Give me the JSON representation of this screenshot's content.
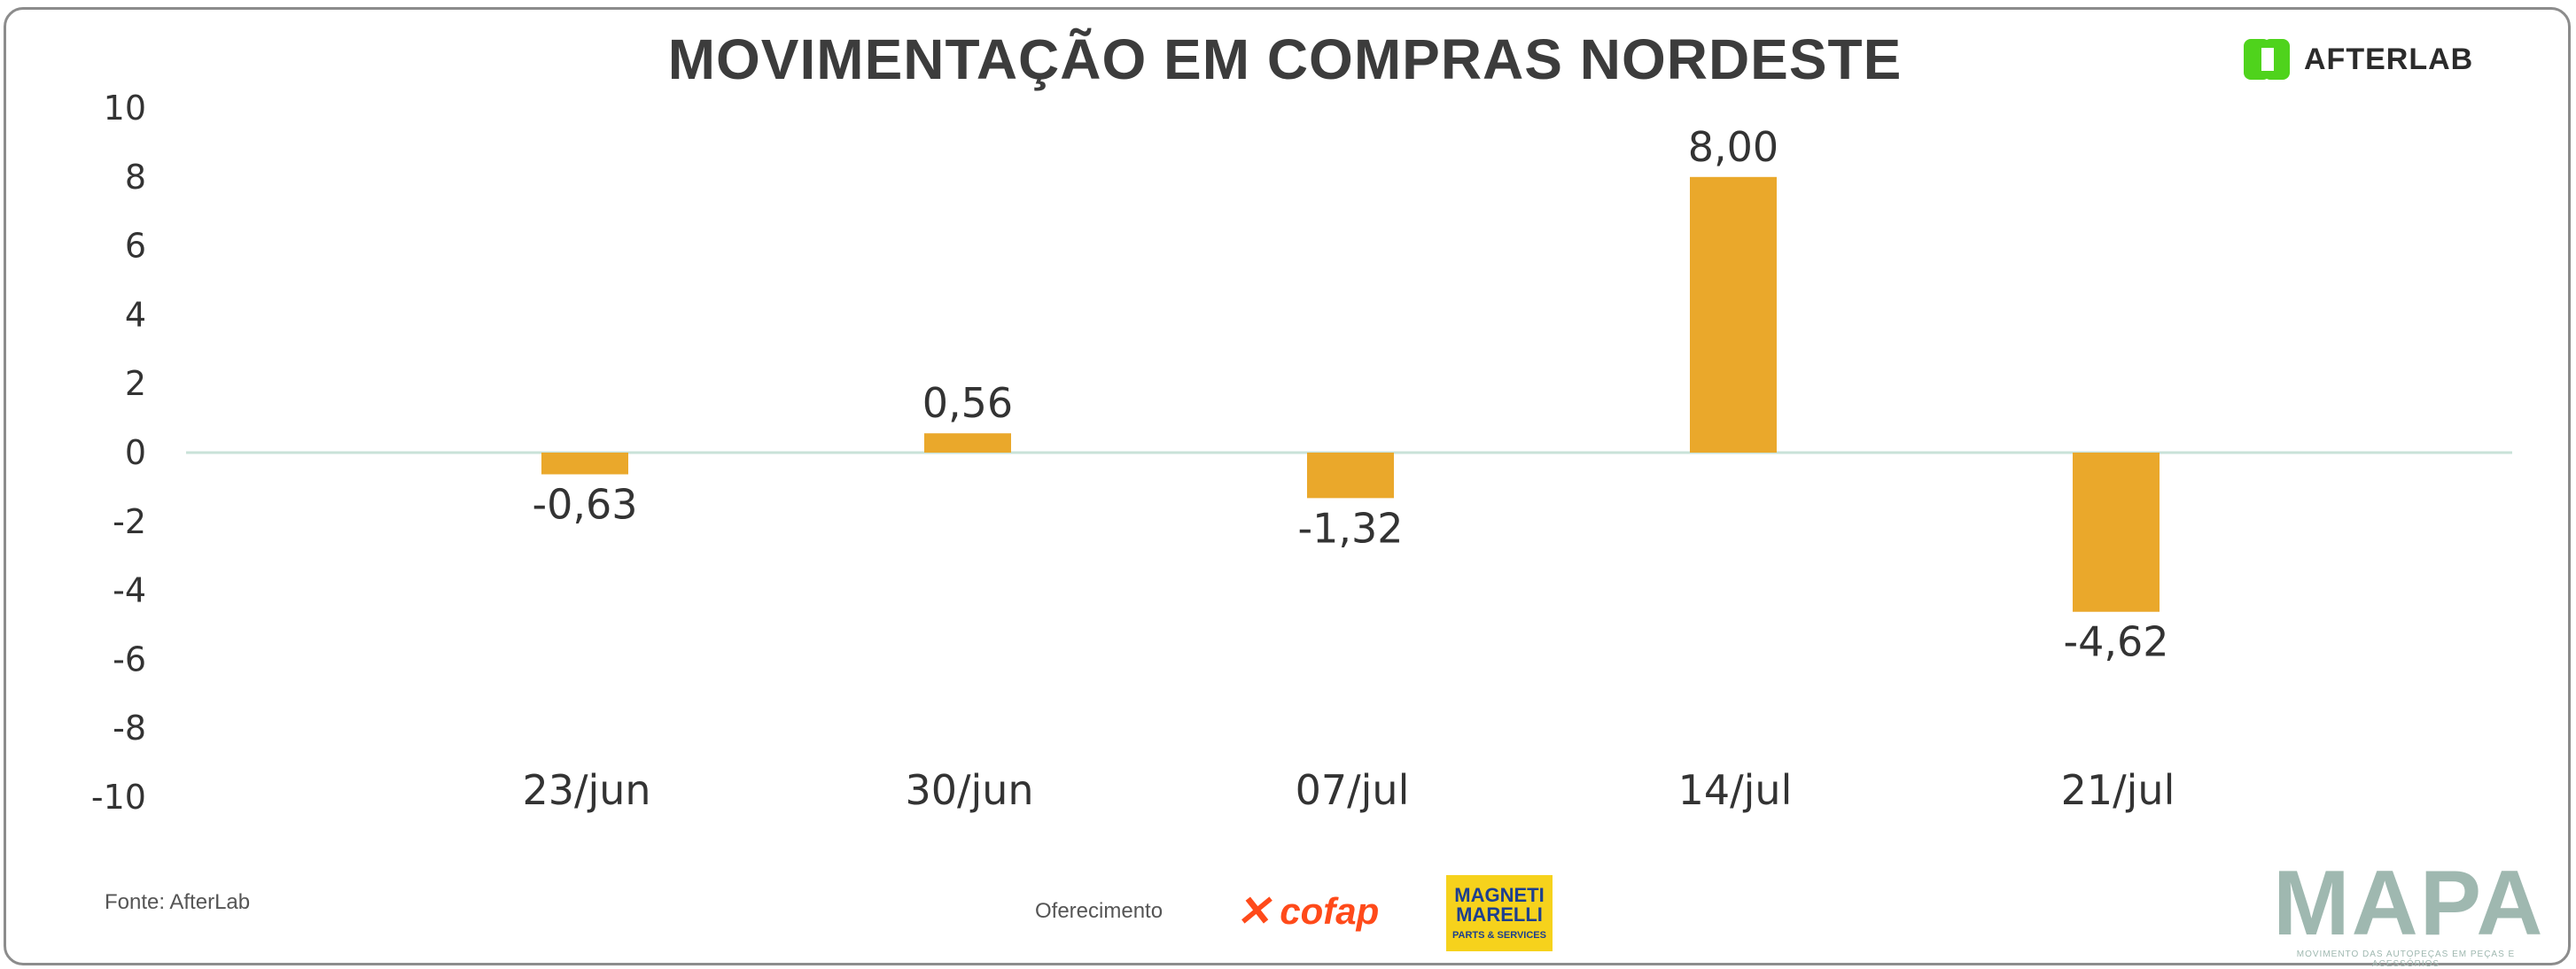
{
  "header": {
    "title": "MOVIMENTAÇÃO EM COMPRAS NORDESTE"
  },
  "brand": {
    "name": "AFTERLAB",
    "color": "#4fd31c"
  },
  "chart_data": {
    "type": "bar",
    "title": "MOVIMENTAÇÃO EM COMPRAS NORDESTE",
    "xlabel": "",
    "ylabel": "",
    "categories": [
      "23/jun",
      "30/jun",
      "07/jul",
      "14/jul",
      "21/jul"
    ],
    "values": [
      -0.63,
      0.56,
      -1.32,
      8.0,
      -4.62
    ],
    "data_labels": [
      "-0,63",
      "0,56",
      "-1,32",
      "8,00",
      "-4,62"
    ],
    "ylim": [
      -10,
      10
    ],
    "yticks": [
      10,
      8,
      6,
      4,
      2,
      0,
      -2,
      -4,
      -6,
      -8,
      -10
    ],
    "grid": false,
    "bar_color": "#eaa82b",
    "baseline_color": "#c9e2d8"
  },
  "footer": {
    "source": "Fonte: AfterLab",
    "sponsor_label": "Oferecimento",
    "sponsors": [
      "cofap",
      "MAGNETI MARELLI"
    ],
    "sponsor_sub": "PARTS & SERVICES",
    "mapa_word": "MAPA",
    "mapa_sub": "MOVIMENTO DAS AUTOPEÇAS EM PEÇAS E ACESSÓRIOS"
  }
}
